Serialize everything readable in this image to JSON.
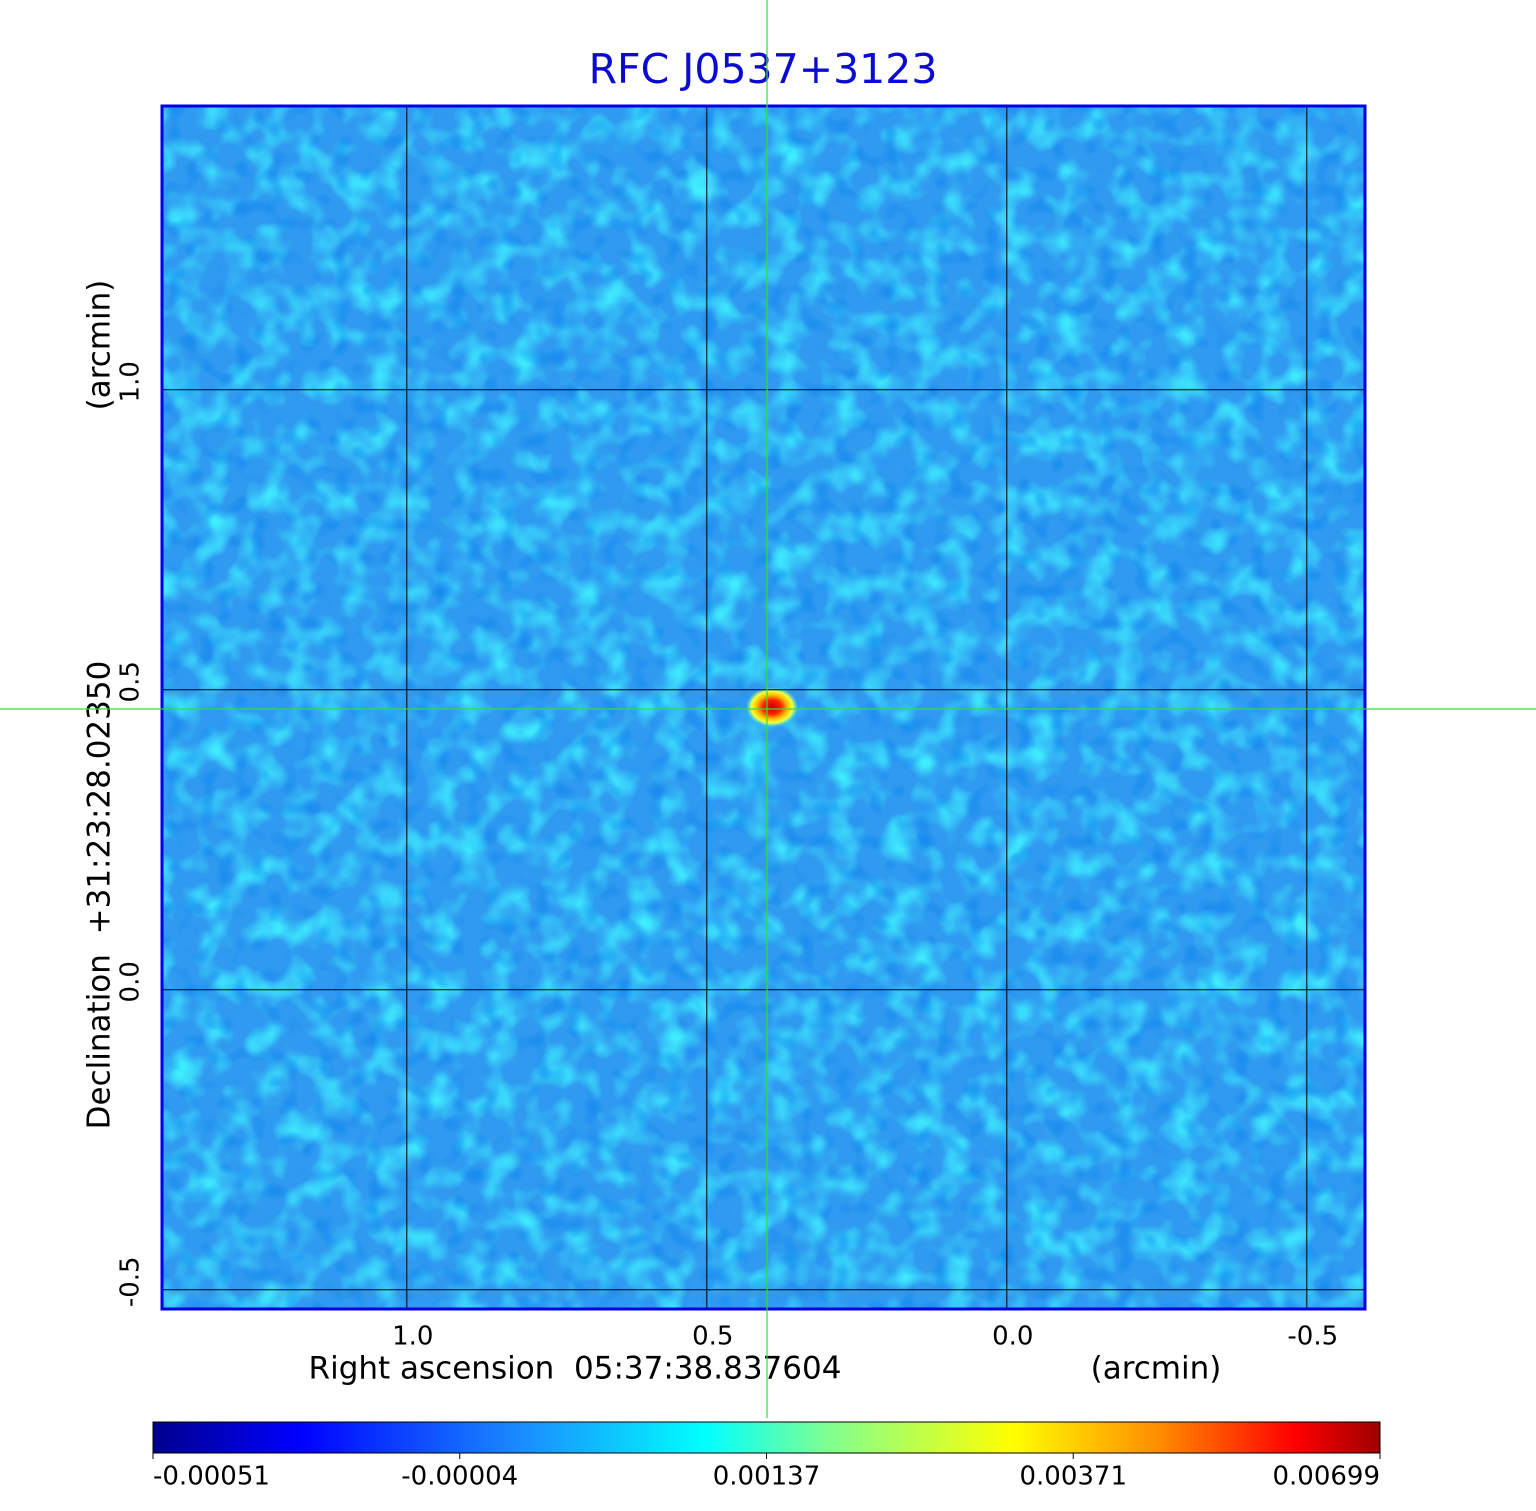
{
  "chart_data": {
    "type": "image",
    "title": "RFC J0537+3123",
    "xlabel": "Right ascension  05:37:38.837604",
    "xunit": "(arcmin)",
    "ylabel": "Declination  +31:23:28.02350",
    "yunit": "(arcmin)",
    "xlim": [
      1.408,
      -0.597
    ],
    "ylim": [
      -0.532,
      1.473
    ],
    "xticks": [
      {
        "value": 1,
        "label": "1.0"
      },
      0.5,
      {
        "value": 0,
        "label": "0.0"
      },
      -0.5
    ],
    "yticks": [
      -0.5,
      {
        "value": 0,
        "label": "0.0"
      },
      0.5,
      {
        "value": 1,
        "label": "1.0"
      }
    ],
    "grid": true,
    "colorbar": {
      "ticks": [
        -0.00051,
        -4e-05,
        0.00137,
        0.00371,
        0.00699
      ]
    }
  }
}
